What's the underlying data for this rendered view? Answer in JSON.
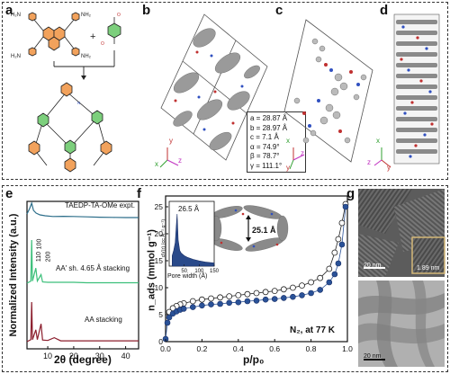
{
  "panels": {
    "a": "a",
    "b": "b",
    "c": "c",
    "d": "d",
    "e": "e",
    "f": "f",
    "g": "g"
  },
  "synthesis": {
    "amine_groups": [
      "H₂N",
      "NH₂",
      "H₂N",
      "NH₂"
    ],
    "plus": "+",
    "linker_substituents": [
      "O",
      "O"
    ],
    "product_nitrogen_label": "N"
  },
  "unit_cell": {
    "params": [
      "a = 28.87 Å",
      "b = 28.97 Å",
      "c = 7.1 Å",
      "α = 74.9°",
      "β = 78.7°",
      "γ = 111.1°"
    ]
  },
  "axes_triads": {
    "b": {
      "x": "x",
      "y": "y",
      "z": "z"
    },
    "c": {
      "x": "x",
      "y": "y",
      "z": "z"
    },
    "d": {
      "x": "x",
      "y": "y",
      "z": "z"
    }
  },
  "pxrd": {
    "ylabel": "Normalized Intensity (a.u.)",
    "xlabel": "2θ (degree)",
    "xticks": [
      "10",
      "20",
      "30",
      "40"
    ],
    "labels": {
      "expt": "TAEDP-TA-OMe expt.",
      "aa_shift": "AA' sh. 4.65 Å stacking",
      "aa": "AA stacking",
      "peaks": [
        "100",
        "110",
        "200"
      ]
    },
    "colors": {
      "expt": "#2c6e8a",
      "aa_shift": "#3cbf7a",
      "aa": "#8b1d2c"
    }
  },
  "isotherm": {
    "ylabel": "n_ads (mmol g⁻¹)",
    "xlabel": "p/p₀",
    "yticks": [
      "0",
      "5",
      "10",
      "15",
      "20",
      "25"
    ],
    "xticks": [
      "0.0",
      "0.2",
      "0.4",
      "0.6",
      "0.8",
      "1.0"
    ],
    "note": "N₂, at 77 K",
    "pore_distance": "25.1 Å",
    "inset": {
      "peak_label": "26.5 Å",
      "ylabel": "dV(r) (cc Å⁻¹ g⁻¹)",
      "xlabel": "Pore width (Å)",
      "xticks": [
        "50",
        "100",
        "150"
      ]
    },
    "colors": {
      "adsorption": "#2a5298",
      "desorption": "#ffffff"
    }
  },
  "tem": {
    "top_scale": "20 nm",
    "inset_scale": "1.89 nm",
    "bottom_scale": "20 nm"
  },
  "chart_data": [
    {
      "type": "line",
      "title": "",
      "xlabel": "2θ (degree)",
      "ylabel": "Normalized Intensity (a.u.)",
      "xlim": [
        2,
        45
      ],
      "series": [
        {
          "name": "TAEDP-TA-OMe expt.",
          "x": [
            2,
            3,
            3.8,
            4.5,
            5.5,
            7,
            9,
            12,
            16,
            20,
            25,
            30,
            35,
            40,
            45
          ],
          "y": [
            0.4,
            0.7,
            1.0,
            0.6,
            0.45,
            0.35,
            0.3,
            0.26,
            0.27,
            0.26,
            0.24,
            0.22,
            0.21,
            0.2,
            0.2
          ]
        },
        {
          "name": "AA' sh. 4.65 Å stacking",
          "x": [
            2,
            3.5,
            3.8,
            4.1,
            5.4,
            6,
            7.4,
            8,
            10,
            15,
            20,
            25,
            30,
            35,
            40,
            45
          ],
          "y": [
            0,
            0.05,
            1.0,
            0.05,
            0.35,
            0.05,
            0.2,
            0.03,
            0.02,
            0.02,
            0.02,
            0.01,
            0.01,
            0.01,
            0.01,
            0.01
          ]
        },
        {
          "name": "AA stacking",
          "x": [
            2,
            3.5,
            3.8,
            4.1,
            5.4,
            6,
            7.4,
            8,
            10,
            12.5,
            15,
            20,
            25,
            30,
            35,
            40,
            45
          ],
          "y": [
            0,
            0.05,
            1.0,
            0.05,
            0.3,
            0.05,
            0.45,
            0.04,
            0.03,
            0.1,
            0.02,
            0.02,
            0.02,
            0.02,
            0.02,
            0.02,
            0.02
          ]
        }
      ]
    },
    {
      "type": "scatter",
      "title": "",
      "xlabel": "p/p₀",
      "ylabel": "n_ads (mmol g⁻¹)",
      "xlim": [
        0,
        1.0
      ],
      "ylim": [
        0,
        27
      ],
      "series": [
        {
          "name": "adsorption",
          "x": [
            0.0,
            0.01,
            0.02,
            0.04,
            0.06,
            0.08,
            0.1,
            0.15,
            0.2,
            0.25,
            0.3,
            0.35,
            0.4,
            0.45,
            0.5,
            0.55,
            0.6,
            0.65,
            0.7,
            0.75,
            0.8,
            0.85,
            0.9,
            0.93,
            0.95,
            0.97,
            0.99
          ],
          "y": [
            0.5,
            3.5,
            4.5,
            5.2,
            5.6,
            5.9,
            6.1,
            6.4,
            6.7,
            6.9,
            7.0,
            7.2,
            7.3,
            7.5,
            7.6,
            7.8,
            7.9,
            8.1,
            8.3,
            8.6,
            9.0,
            9.6,
            11.0,
            12.5,
            14.5,
            18.0,
            25.0
          ]
        },
        {
          "name": "desorption",
          "x": [
            0.99,
            0.97,
            0.95,
            0.93,
            0.9,
            0.85,
            0.8,
            0.75,
            0.7,
            0.65,
            0.6,
            0.55,
            0.5,
            0.45,
            0.4,
            0.35,
            0.3,
            0.25,
            0.2,
            0.15,
            0.1,
            0.08,
            0.06,
            0.04,
            0.02
          ],
          "y": [
            25.5,
            22.0,
            19.0,
            16.5,
            13.5,
            11.8,
            11.0,
            10.4,
            10.0,
            9.7,
            9.4,
            9.2,
            9.0,
            8.8,
            8.6,
            8.4,
            8.2,
            8.0,
            7.8,
            7.5,
            7.1,
            6.9,
            6.6,
            6.2,
            5.5
          ]
        }
      ]
    },
    {
      "type": "area",
      "title": "",
      "xlabel": "Pore width (Å)",
      "ylabel": "dV(r) (cc Å⁻¹ g⁻¹)",
      "xlim": [
        0,
        150
      ],
      "series": [
        {
          "name": "",
          "x": [
            10,
            15,
            20,
            24,
            26.5,
            30,
            35,
            40,
            50,
            60,
            80,
            100,
            120,
            150
          ],
          "y": [
            0.2,
            0.3,
            0.45,
            0.8,
            1.0,
            0.5,
            0.3,
            0.25,
            0.2,
            0.17,
            0.13,
            0.1,
            0.08,
            0.06
          ]
        }
      ]
    }
  ]
}
